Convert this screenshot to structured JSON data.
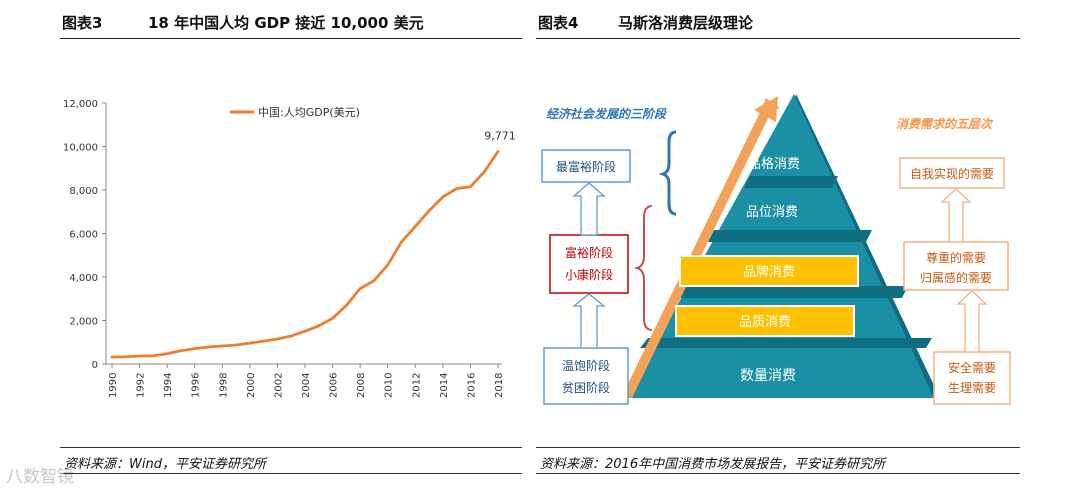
{
  "left_panel": {
    "label": "图表3",
    "title": "18 年中国人均 GDP 接近 10,000 美元",
    "source": "资料来源：Wind，平安证券研究所"
  },
  "right_panel": {
    "label": "图表4",
    "title": "马斯洛消费层级理论",
    "source": "资料来源：2016年中国消费市场发展报告，平安证券研究所"
  },
  "chart_data": {
    "type": "line",
    "title": "",
    "legend": "中国:人均GDP(美元)",
    "legend_placement": "top-center",
    "xlabel": "",
    "ylabel": "",
    "ylim": [
      0,
      12000
    ],
    "yticks": [
      "0",
      "2,000",
      "4,000",
      "6,000",
      "8,000",
      "10,000",
      "12,000"
    ],
    "ytick_values": [
      0,
      2000,
      4000,
      6000,
      8000,
      10000,
      12000
    ],
    "x_tick_labels": [
      "1990",
      "1992",
      "1994",
      "1996",
      "1998",
      "2000",
      "2002",
      "2004",
      "2006",
      "2008",
      "2010",
      "2012",
      "2014",
      "2016",
      "2018"
    ],
    "series": [
      {
        "name": "中国:人均GDP(美元)",
        "color": "#ed7d31",
        "x": [
          1990,
          1991,
          1992,
          1993,
          1994,
          1995,
          1996,
          1997,
          1998,
          1999,
          2000,
          2001,
          2002,
          2003,
          2004,
          2005,
          2006,
          2007,
          2008,
          2009,
          2010,
          2011,
          2012,
          2013,
          2014,
          2015,
          2016,
          2017,
          2018
        ],
        "values": [
          317,
          333,
          366,
          377,
          473,
          610,
          709,
          782,
          829,
          873,
          959,
          1053,
          1149,
          1289,
          1509,
          1753,
          2099,
          2694,
          3468,
          3832,
          4550,
          5618,
          6316,
          7050,
          7678,
          8066,
          8147,
          8827,
          9771
        ]
      }
    ],
    "annotation": "9,771",
    "grid": false
  },
  "pyramid": {
    "stage_header": "经济社会发展的三阶段",
    "stages": [
      "最富裕阶段",
      "富裕阶段",
      "小康阶段",
      "温饱阶段",
      "贫困阶段"
    ],
    "levels": [
      "品格消费",
      "品位消费",
      "品牌消费",
      "品质消费",
      "数量消费"
    ],
    "needs_header": "消费需求的五层次",
    "needs": [
      "自我实现的需要",
      "尊重的需要",
      "归属感的需要",
      "安全需要",
      "生理需要"
    ]
  },
  "watermark": "八数智镜"
}
